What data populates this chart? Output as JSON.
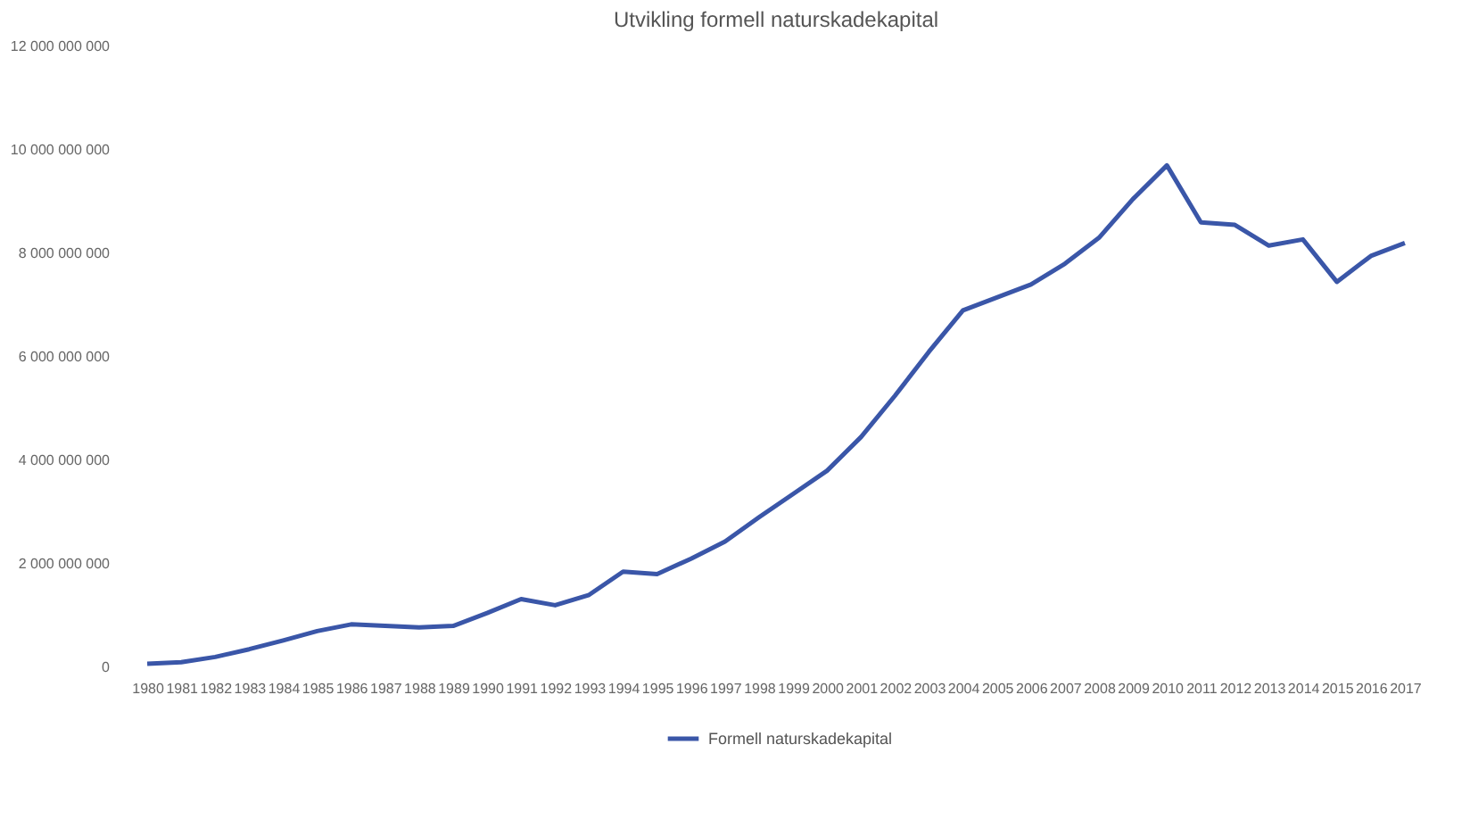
{
  "chart_data": {
    "type": "line",
    "title": "Utvikling formell naturskadekapital",
    "categories": [
      "1980",
      "1981",
      "1982",
      "1983",
      "1984",
      "1985",
      "1986",
      "1987",
      "1988",
      "1989",
      "1990",
      "1991",
      "1992",
      "1993",
      "1994",
      "1995",
      "1996",
      "1997",
      "1998",
      "1999",
      "2000",
      "2001",
      "2002",
      "2003",
      "2004",
      "2005",
      "2006",
      "2007",
      "2008",
      "2009",
      "2010",
      "2011",
      "2012",
      "2013",
      "2014",
      "2015",
      "2016",
      "2017"
    ],
    "series": [
      {
        "name": "Formell naturskadekapital",
        "color": "#3a56a8",
        "values": [
          70000000,
          100000000,
          200000000,
          350000000,
          520000000,
          700000000,
          830000000,
          800000000,
          770000000,
          800000000,
          1050000000,
          1320000000,
          1200000000,
          1400000000,
          1850000000,
          1800000000,
          2100000000,
          2430000000,
          2900000000,
          3350000000,
          3800000000,
          4450000000,
          5250000000,
          6100000000,
          6900000000,
          7150000000,
          7400000000,
          7800000000,
          8300000000,
          9050000000,
          9700000000,
          8600000000,
          8550000000,
          8150000000,
          8270000000,
          7450000000,
          7950000000,
          8200000000
        ]
      }
    ],
    "ylim": [
      0,
      12000000000
    ],
    "yticks": [
      {
        "value": 0,
        "label": "0"
      },
      {
        "value": 2000000000,
        "label": "2 000 000 000"
      },
      {
        "value": 4000000000,
        "label": "4 000 000 000"
      },
      {
        "value": 6000000000,
        "label": "6 000 000 000"
      },
      {
        "value": 8000000000,
        "label": "8 000 000 000"
      },
      {
        "value": 10000000000,
        "label": "10 000 000 000"
      },
      {
        "value": 12000000000,
        "label": "12 000 000 000"
      }
    ],
    "grid": false,
    "legend": "bottom",
    "marker": "none",
    "line_style": "solid"
  }
}
